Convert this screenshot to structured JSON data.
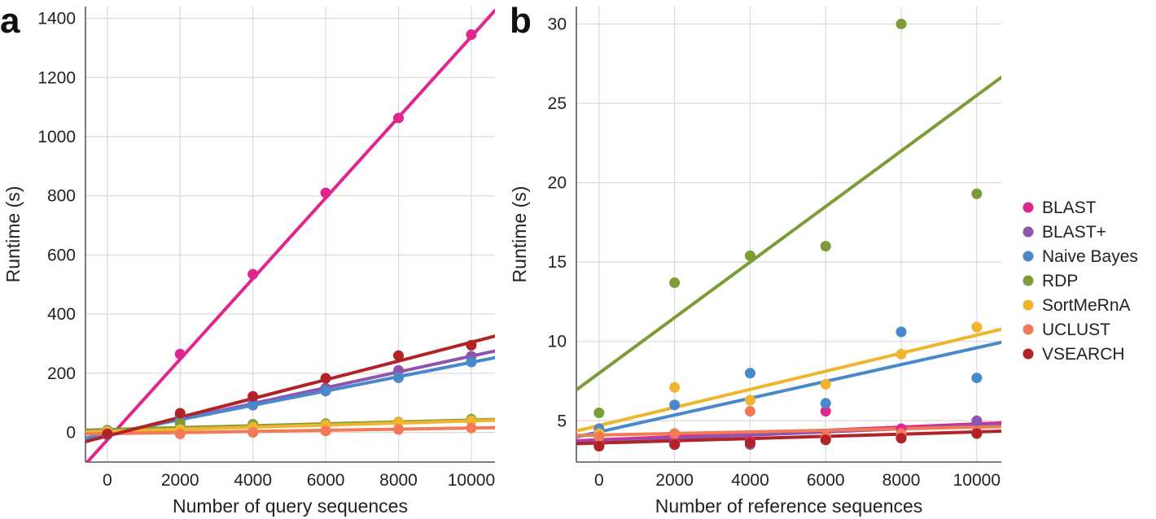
{
  "chart_data": [
    {
      "panel": "a",
      "type": "scatter",
      "xlabel": "Number of query sequences",
      "ylabel": "Runtime (s)",
      "xlim": [
        -600,
        10650
      ],
      "ylim": [
        -100,
        1440
      ],
      "xticks": [
        0,
        2000,
        4000,
        6000,
        8000,
        10000
      ],
      "yticks": [
        0,
        200,
        400,
        600,
        800,
        1000,
        1200,
        1400
      ],
      "grid": true,
      "x": [
        0,
        2000,
        4000,
        6000,
        8000,
        10000
      ],
      "series": [
        {
          "name": "BLAST",
          "color": "#e0258f",
          "values": [
            -5,
            265,
            535,
            810,
            1063,
            1345
          ],
          "fit": [
            -25,
            136.3
          ]
        },
        {
          "name": "BLAST+",
          "color": "#8d56ae",
          "values": [
            -8,
            55,
            100,
            150,
            210,
            258
          ],
          "fit": [
            -9,
            26.7
          ]
        },
        {
          "name": "Naive Bayes",
          "color": "#4a88cc",
          "values": [
            -5,
            40,
            92,
            140,
            185,
            238
          ],
          "fit": [
            -5,
            24.2
          ]
        },
        {
          "name": "RDP",
          "color": "#7c9c36",
          "values": [
            8,
            30,
            28,
            30,
            35,
            45
          ],
          "fit": [
            10,
            3.2
          ]
        },
        {
          "name": "SortMeRnA",
          "color": "#f0b52e",
          "values": [
            3,
            10,
            18,
            25,
            33,
            40
          ],
          "fit": [
            4,
            3.5
          ]
        },
        {
          "name": "UCLUST",
          "color": "#f27a56",
          "values": [
            -3,
            -5,
            0,
            5,
            10,
            15
          ],
          "fit": [
            -4,
            1.9
          ]
        },
        {
          "name": "VSEARCH",
          "color": "#b22328",
          "values": [
            -5,
            65,
            122,
            183,
            260,
            295
          ],
          "fit": [
            -12,
            31.7
          ]
        }
      ]
    },
    {
      "panel": "b",
      "type": "scatter",
      "xlabel": "Number of reference sequences",
      "ylabel": "Runtime (s)",
      "xlim": [
        -600,
        10650
      ],
      "ylim": [
        2.4,
        31.1
      ],
      "xticks": [
        0,
        2000,
        4000,
        6000,
        8000,
        10000
      ],
      "yticks": [
        5,
        10,
        15,
        20,
        25,
        30
      ],
      "grid": true,
      "x": [
        0,
        2000,
        4000,
        6000,
        8000,
        10000
      ],
      "series": [
        {
          "name": "BLAST",
          "color": "#e0258f",
          "values": [
            3.5,
            3.6,
            3.7,
            5.6,
            4.5,
            4.2
          ],
          "fit": [
            3.8,
            0.1
          ]
        },
        {
          "name": "BLAST+",
          "color": "#8d56ae",
          "values": [
            3.4,
            3.5,
            3.5,
            3.8,
            4.0,
            5.0
          ],
          "fit": [
            3.7,
            0.1
          ]
        },
        {
          "name": "Naive Bayes",
          "color": "#4a88cc",
          "values": [
            4.5,
            6.0,
            8.0,
            6.1,
            10.6,
            7.7
          ],
          "fit": [
            4.3,
            0.53
          ]
        },
        {
          "name": "RDP",
          "color": "#7c9c36",
          "values": [
            5.5,
            13.7,
            15.4,
            16.0,
            30.0,
            19.3
          ],
          "fit": [
            8.0,
            1.75
          ]
        },
        {
          "name": "SortMeRnA",
          "color": "#f0b52e",
          "values": [
            4.2,
            7.1,
            6.3,
            7.3,
            9.2,
            10.9
          ],
          "fit": [
            4.7,
            0.57
          ]
        },
        {
          "name": "UCLUST",
          "color": "#f27a56",
          "values": [
            4.0,
            4.2,
            5.6,
            4.0,
            4.2,
            4.3
          ],
          "fit": [
            4.1,
            0.05
          ]
        },
        {
          "name": "VSEARCH",
          "color": "#b22328",
          "values": [
            3.4,
            3.5,
            3.6,
            3.8,
            3.9,
            4.2
          ],
          "fit": [
            3.6,
            0.07
          ]
        }
      ]
    }
  ],
  "legend": {
    "placement": "right",
    "entries": [
      "BLAST",
      "BLAST+",
      "Naive Bayes",
      "RDP",
      "SortMeRnA",
      "UCLUST",
      "VSEARCH"
    ]
  }
}
